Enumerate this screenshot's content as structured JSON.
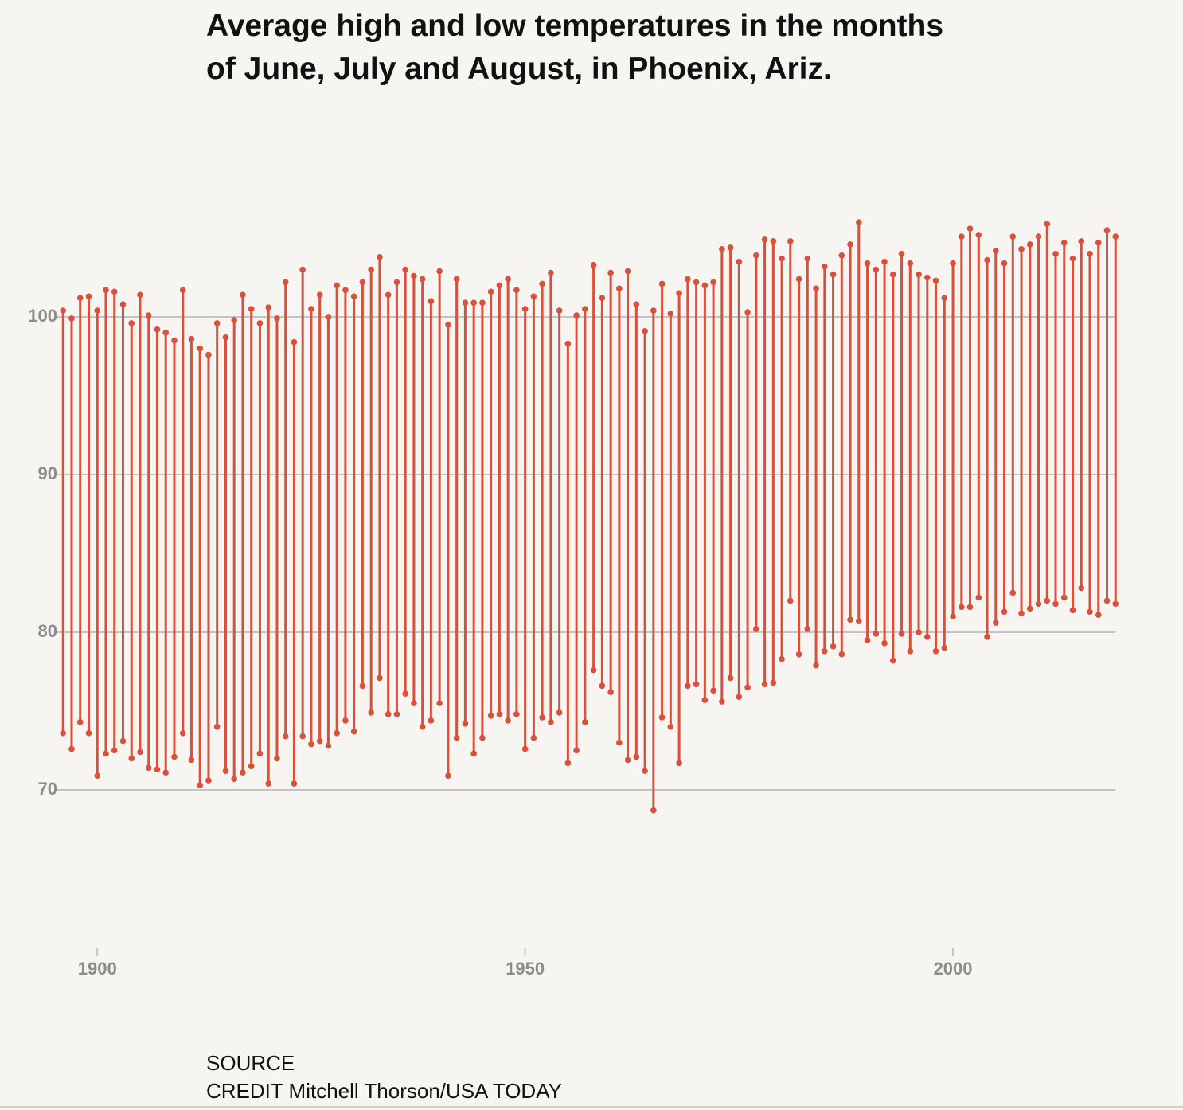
{
  "chart_data": {
    "type": "dumbbell",
    "title": "Average high and low temperatures in the months of June, July and August, in Phoenix, Ariz.",
    "x": [
      1896,
      1897,
      1898,
      1899,
      1900,
      1901,
      1902,
      1903,
      1904,
      1905,
      1906,
      1907,
      1908,
      1909,
      1910,
      1911,
      1912,
      1913,
      1914,
      1915,
      1916,
      1917,
      1918,
      1919,
      1920,
      1921,
      1922,
      1923,
      1924,
      1925,
      1926,
      1927,
      1928,
      1929,
      1930,
      1931,
      1932,
      1933,
      1934,
      1935,
      1936,
      1937,
      1938,
      1939,
      1940,
      1941,
      1942,
      1943,
      1944,
      1945,
      1946,
      1947,
      1948,
      1949,
      1950,
      1951,
      1952,
      1953,
      1954,
      1955,
      1956,
      1957,
      1958,
      1959,
      1960,
      1961,
      1962,
      1963,
      1964,
      1965,
      1966,
      1967,
      1968,
      1969,
      1970,
      1971,
      1972,
      1973,
      1974,
      1975,
      1976,
      1977,
      1978,
      1979,
      1980,
      1981,
      1982,
      1983,
      1984,
      1985,
      1986,
      1987,
      1988,
      1989,
      1990,
      1991,
      1992,
      1993,
      1994,
      1995,
      1996,
      1997,
      1998,
      1999,
      2000,
      2001,
      2002,
      2003,
      2004,
      2005,
      2006,
      2007,
      2008,
      2009,
      2010,
      2011,
      2012,
      2013,
      2014,
      2015,
      2016,
      2017,
      2018,
      2019
    ],
    "series": [
      {
        "color": "#d9503b",
        "values": [
          100.4,
          99.9,
          101.2,
          101.3,
          100.4,
          101.7,
          101.6,
          100.8,
          99.6,
          101.4,
          100.1,
          99.2,
          99.0,
          98.5,
          101.7,
          98.6,
          98.0,
          97.6,
          99.6,
          98.7,
          99.8,
          101.4,
          100.5,
          99.6,
          100.6,
          99.9,
          102.2,
          98.4,
          103.0,
          100.5,
          101.4,
          100.0,
          102.0,
          101.7,
          101.3,
          102.2,
          103.0,
          103.8,
          101.4,
          102.2,
          103.0,
          102.6,
          102.4,
          101.0,
          102.9,
          99.5,
          102.4,
          100.9,
          100.9,
          100.9,
          101.6,
          102.0,
          102.4,
          101.7,
          100.5,
          101.3,
          102.1,
          102.8,
          100.4,
          98.3,
          100.1,
          100.5,
          103.3,
          101.2,
          102.8,
          101.8,
          102.9,
          100.8,
          99.1,
          100.4,
          102.1,
          100.2,
          101.5,
          102.4,
          102.2,
          102.0,
          102.2,
          104.3,
          104.4,
          103.5,
          100.3,
          103.9,
          104.9,
          104.8,
          103.7,
          104.8,
          102.4,
          103.7,
          101.8,
          103.2,
          102.7,
          103.9,
          104.6,
          106.0,
          103.4,
          103.0,
          103.5,
          102.7,
          104.0,
          103.4,
          102.7,
          102.5,
          102.3,
          101.2,
          103.4,
          105.1,
          105.6,
          105.2,
          103.6,
          104.2,
          103.4,
          105.1,
          104.3,
          104.6,
          105.1,
          105.9,
          104.0,
          104.7,
          103.7,
          104.8,
          104.0,
          104.7,
          105.5,
          105.1
        ]
      },
      {
        "color": "#d9503b",
        "values": [
          73.6,
          72.6,
          74.3,
          73.6,
          70.9,
          72.3,
          72.5,
          73.1,
          72.0,
          72.4,
          71.4,
          71.3,
          71.1,
          72.1,
          73.6,
          71.9,
          70.3,
          70.6,
          74.0,
          71.2,
          70.7,
          71.1,
          71.5,
          72.3,
          70.4,
          72.0,
          73.4,
          70.4,
          73.4,
          72.9,
          73.1,
          72.8,
          73.6,
          74.4,
          73.7,
          76.6,
          74.9,
          77.1,
          74.8,
          74.8,
          76.1,
          75.5,
          74.0,
          74.4,
          75.5,
          70.9,
          73.3,
          74.2,
          72.3,
          73.3,
          74.7,
          74.8,
          74.4,
          74.8,
          72.6,
          73.3,
          74.6,
          74.3,
          74.9,
          71.7,
          72.5,
          74.3,
          77.6,
          76.6,
          76.2,
          73.0,
          71.9,
          72.1,
          71.2,
          68.7,
          74.6,
          74.0,
          71.7,
          76.6,
          76.7,
          75.7,
          76.3,
          75.6,
          77.1,
          75.9,
          76.5,
          80.2,
          76.7,
          76.8,
          78.3,
          82.0,
          78.6,
          80.2,
          77.9,
          78.8,
          79.1,
          78.6,
          80.8,
          80.7,
          79.5,
          79.9,
          79.3,
          78.2,
          79.9,
          78.8,
          80.0,
          79.7,
          78.8,
          79.0,
          81.0,
          81.6,
          81.6,
          82.2,
          79.7,
          80.6,
          81.3,
          82.5,
          81.2,
          81.5,
          81.8,
          82.0,
          81.8,
          82.2,
          81.4,
          82.8,
          81.3,
          81.1,
          82.0,
          81.8
        ]
      }
    ],
    "xlim": [
      1889,
      2024
    ],
    "xticks": [
      1900,
      1950,
      2000
    ],
    "ylim": [
      60,
      110
    ],
    "yticks": [
      70,
      80,
      90,
      100
    ],
    "grid": true,
    "source_label": "SOURCE",
    "credit": "CREDIT Mitchell Thorson/USA TODAY"
  }
}
